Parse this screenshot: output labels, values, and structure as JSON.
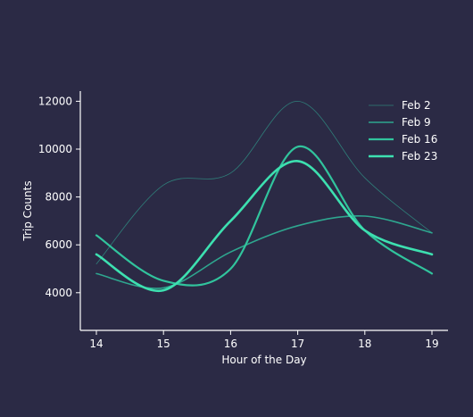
{
  "chart_data": {
    "type": "line",
    "title": "",
    "xlabel": "Hour of the Day",
    "ylabel": "Trip Counts",
    "x": [
      14,
      15,
      16,
      17,
      18,
      19
    ],
    "xlim": [
      14,
      19
    ],
    "ylim": [
      2500,
      12500
    ],
    "xticks": [
      "14",
      "15",
      "16",
      "17",
      "18",
      "19"
    ],
    "yticks": [
      "4000",
      "6000",
      "8000",
      "10000",
      "12000"
    ],
    "grid": false,
    "legend_position": "top-right",
    "series": [
      {
        "name": "Feb 2",
        "color": "#2f7f7a",
        "width": 0.8,
        "values": [
          5200,
          8500,
          9000,
          12000,
          8800,
          6500
        ]
      },
      {
        "name": "Feb 9",
        "color": "#2ea68f",
        "width": 1.6,
        "values": [
          4800,
          4200,
          5700,
          6800,
          7200,
          6500
        ]
      },
      {
        "name": "Feb 16",
        "color": "#31c49d",
        "width": 2.2,
        "values": [
          6400,
          4500,
          5000,
          10100,
          6600,
          4800
        ]
      },
      {
        "name": "Feb 23",
        "color": "#3de0b0",
        "width": 2.6,
        "values": [
          5600,
          4100,
          7000,
          9500,
          6600,
          5600
        ]
      }
    ]
  }
}
